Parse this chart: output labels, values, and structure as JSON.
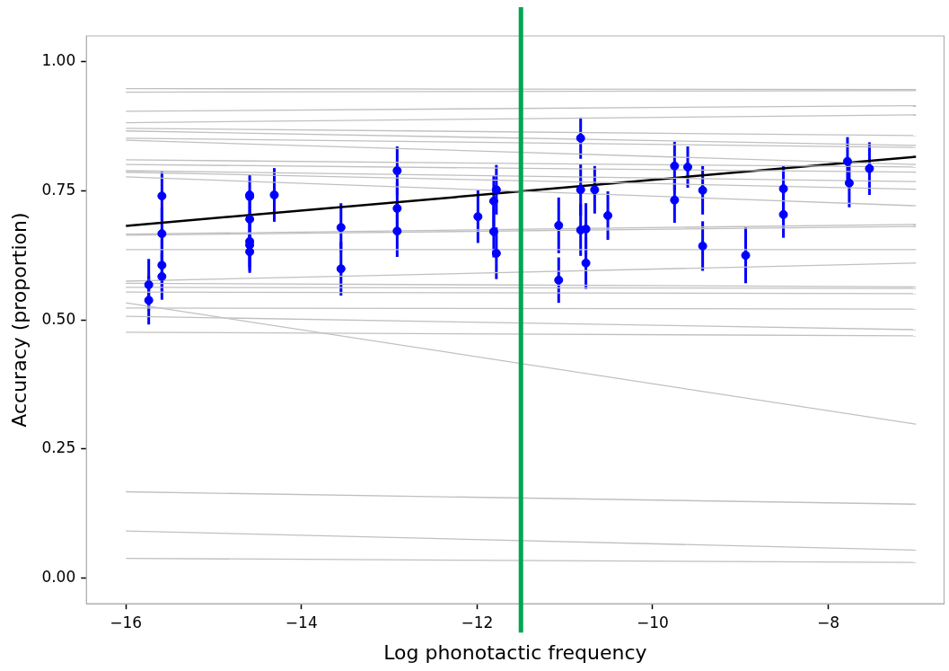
{
  "chart_data": {
    "type": "scatter",
    "xlabel": "Log phonotactic frequency",
    "ylabel": "Accuracy (proportion)",
    "xlim": [
      -16.45,
      -6.68
    ],
    "ylim": [
      -0.05,
      1.05
    ],
    "xticks": [
      {
        "value": -16,
        "label": "−16"
      },
      {
        "value": -14,
        "label": "−14"
      },
      {
        "value": -12,
        "label": "−12"
      },
      {
        "value": -10,
        "label": "−10"
      },
      {
        "value": -8,
        "label": "−8"
      }
    ],
    "yticks": [
      {
        "value": 0,
        "label": "0.00"
      },
      {
        "value": 0.25,
        "label": "0.25"
      },
      {
        "value": 0.5,
        "label": "0.50"
      },
      {
        "value": 0.75,
        "label": "0.75"
      },
      {
        "value": 1,
        "label": "1.00"
      }
    ],
    "grid": false,
    "legend": false,
    "marker": "circle",
    "line_style": "solid",
    "ref_lines": [
      {
        "axis": "x",
        "value": -11.5,
        "color": "#00a651"
      }
    ],
    "series": [
      {
        "type": "line",
        "marker": "none",
        "color": "#c0c0c0",
        "x": [
          -16,
          -7
        ],
        "values": [
          0.948,
          0.946
        ]
      },
      {
        "type": "line",
        "marker": "none",
        "color": "#c0c0c0",
        "x": [
          -16,
          -7
        ],
        "values": [
          0.941,
          0.944
        ]
      },
      {
        "type": "line",
        "marker": "none",
        "color": "#c0c0c0",
        "x": [
          -16,
          -7
        ],
        "values": [
          0.904,
          0.915
        ]
      },
      {
        "type": "line",
        "marker": "none",
        "color": "#c0c0c0",
        "x": [
          -16,
          -7
        ],
        "values": [
          0.882,
          0.897
        ]
      },
      {
        "type": "line",
        "marker": "none",
        "color": "#c0c0c0",
        "x": [
          -16,
          -7
        ],
        "values": [
          0.871,
          0.857
        ]
      },
      {
        "type": "line",
        "marker": "none",
        "color": "#c0c0c0",
        "x": [
          -16,
          -7
        ],
        "values": [
          0.866,
          0.838
        ]
      },
      {
        "type": "line",
        "marker": "none",
        "color": "#c0c0c0",
        "x": [
          -16,
          -7
        ],
        "values": [
          0.852,
          0.834
        ]
      },
      {
        "type": "line",
        "marker": "none",
        "color": "#c0c0c0",
        "x": [
          -16,
          -7
        ],
        "values": [
          0.848,
          0.801
        ]
      },
      {
        "type": "line",
        "marker": "none",
        "color": "#c0c0c0",
        "x": [
          -16,
          -7
        ],
        "values": [
          0.81,
          0.796
        ]
      },
      {
        "type": "line",
        "marker": "none",
        "color": "#c0c0c0",
        "x": [
          -16,
          -7
        ],
        "values": [
          0.801,
          0.786
        ]
      },
      {
        "type": "line",
        "marker": "none",
        "color": "#c0c0c0",
        "x": [
          -16,
          -7
        ],
        "values": [
          0.789,
          0.768
        ]
      },
      {
        "type": "line",
        "marker": "none",
        "color": "#c0c0c0",
        "x": [
          -16,
          -7
        ],
        "values": [
          0.786,
          0.753
        ]
      },
      {
        "type": "line",
        "marker": "none",
        "color": "#c0c0c0",
        "x": [
          -16,
          -7
        ],
        "values": [
          0.777,
          0.721
        ]
      },
      {
        "type": "line",
        "marker": "none",
        "color": "#c0c0c0",
        "x": [
          -16,
          -7
        ],
        "values": [
          0.666,
          0.685
        ]
      },
      {
        "type": "line",
        "marker": "none",
        "color": "#c0c0c0",
        "x": [
          -16,
          -7
        ],
        "values": [
          0.664,
          0.681
        ]
      },
      {
        "type": "line",
        "marker": "none",
        "color": "#c0c0c0",
        "x": [
          -16,
          -7
        ],
        "values": [
          0.636,
          0.636
        ]
      },
      {
        "type": "line",
        "marker": "none",
        "color": "#c0c0c0",
        "x": [
          -16,
          -7
        ],
        "values": [
          0.575,
          0.61
        ]
      },
      {
        "type": "line",
        "marker": "none",
        "color": "#c0c0c0",
        "x": [
          -16,
          -7
        ],
        "values": [
          0.571,
          0.564
        ]
      },
      {
        "type": "line",
        "marker": "none",
        "color": "#c0c0c0",
        "x": [
          -16,
          -7
        ],
        "values": [
          0.563,
          0.561
        ]
      },
      {
        "type": "line",
        "marker": "none",
        "color": "#c0c0c0",
        "x": [
          -16,
          -7
        ],
        "values": [
          0.554,
          0.551
        ]
      },
      {
        "type": "line",
        "marker": "none",
        "color": "#c0c0c0",
        "x": [
          -16,
          -7
        ],
        "values": [
          0.533,
          0.298
        ]
      },
      {
        "type": "line",
        "marker": "none",
        "color": "#c0c0c0",
        "x": [
          -16,
          -7
        ],
        "values": [
          0.523,
          0.521
        ]
      },
      {
        "type": "line",
        "marker": "none",
        "color": "#c0c0c0",
        "x": [
          -16,
          -7
        ],
        "values": [
          0.507,
          0.481
        ]
      },
      {
        "type": "line",
        "marker": "none",
        "color": "#c0c0c0",
        "x": [
          -16,
          -7
        ],
        "values": [
          0.476,
          0.469
        ]
      },
      {
        "type": "line",
        "marker": "none",
        "color": "#c0c0c0",
        "x": [
          -16,
          -7
        ],
        "values": [
          0.167,
          0.143
        ]
      },
      {
        "type": "line",
        "marker": "none",
        "color": "#c0c0c0",
        "x": [
          -16,
          -7
        ],
        "values": [
          0.091,
          0.054
        ]
      },
      {
        "type": "line",
        "marker": "none",
        "color": "#c0c0c0",
        "x": [
          -16,
          -7
        ],
        "values": [
          0.038,
          0.03
        ]
      },
      {
        "type": "line",
        "marker": "none",
        "color": "#000000",
        "x": [
          -16,
          -7
        ],
        "values": [
          0.682,
          0.816
        ]
      },
      {
        "color": "#0000ff",
        "x": [
          -15.74,
          -15.74,
          -15.59,
          -15.59,
          -15.59,
          -15.59,
          -14.59,
          -14.59,
          -14.59,
          -14.59,
          -14.59,
          -14.59,
          -14.31,
          -13.55,
          -13.55,
          -12.91,
          -12.91,
          -12.91,
          -11.99,
          -11.81,
          -11.81,
          -11.78,
          -11.78,
          -11.07,
          -11.07,
          -10.82,
          -10.82,
          -10.82,
          -10.76,
          -10.76,
          -10.66,
          -10.51,
          -9.75,
          -9.75,
          -9.6,
          -9.43,
          -9.43,
          -8.94,
          -8.51,
          -8.51,
          -7.78,
          -7.76,
          -7.53
        ],
        "values": [
          0.568,
          0.538,
          0.74,
          0.667,
          0.606,
          0.584,
          0.742,
          0.739,
          0.695,
          0.652,
          0.645,
          0.632,
          0.742,
          0.679,
          0.599,
          0.789,
          0.716,
          0.672,
          0.7,
          0.73,
          0.671,
          0.752,
          0.629,
          0.683,
          0.577,
          0.852,
          0.752,
          0.674,
          0.676,
          0.61,
          0.752,
          0.702,
          0.798,
          0.732,
          0.796,
          0.751,
          0.643,
          0.625,
          0.754,
          0.704,
          0.807,
          0.765,
          0.793
        ],
        "errors": [
          0.05,
          0.047,
          0.047,
          0.05,
          0.05,
          0.045,
          0.04,
          null,
          0.05,
          0.05,
          0.05,
          0.041,
          0.052,
          0.047,
          0.052,
          0.047,
          0.05,
          0.05,
          0.051,
          0.05,
          0.05,
          0.048,
          0.05,
          0.054,
          0.044,
          0.04,
          0.05,
          0.05,
          0.05,
          0.05,
          0.046,
          0.047,
          0.047,
          0.044,
          0.04,
          0.047,
          0.048,
          0.054,
          0.044,
          0.045,
          0.047,
          0.047,
          0.051
        ]
      }
    ]
  }
}
